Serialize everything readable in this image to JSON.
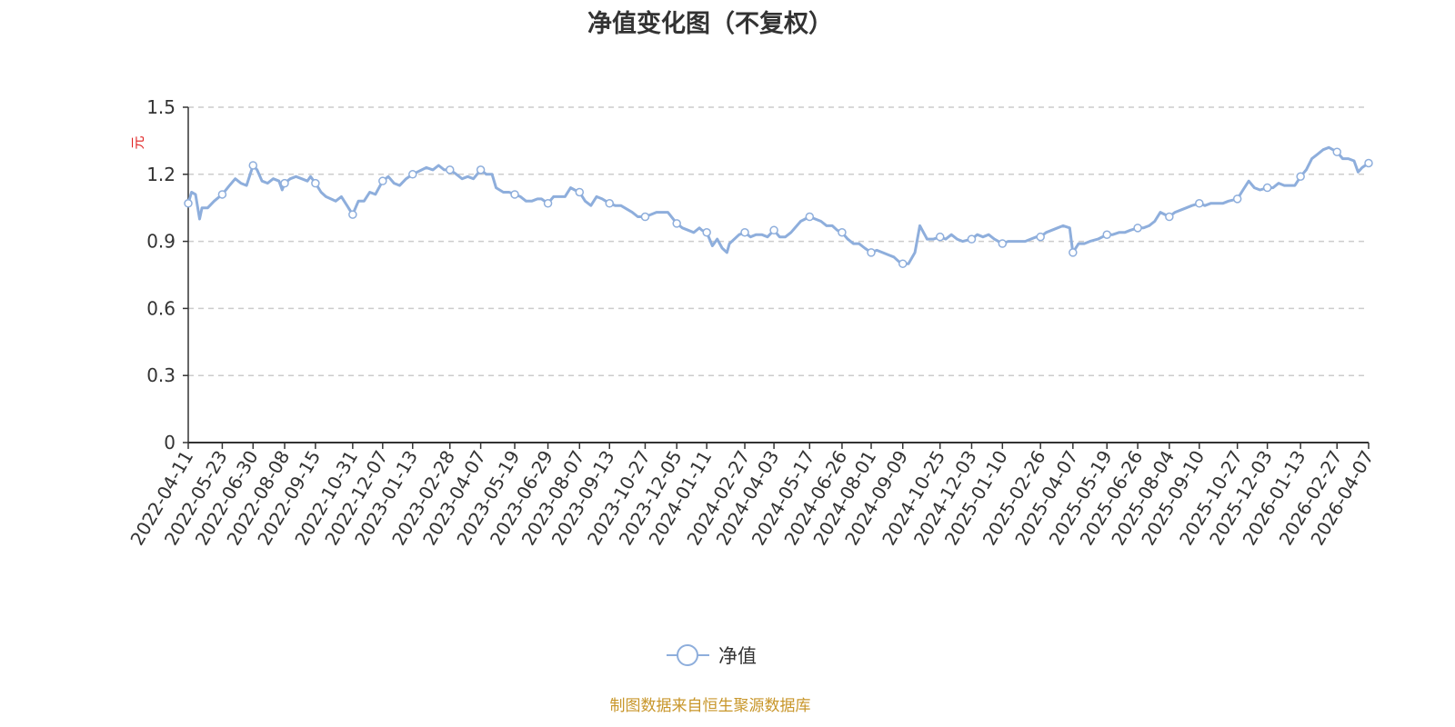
{
  "chart_data": {
    "type": "line",
    "title": "净值变化图（不复权）",
    "ylabel": "元",
    "ylabel_color": "#e02020",
    "ylim": [
      0,
      1.5
    ],
    "yticks": [
      "0",
      "0.3",
      "0.6",
      "0.9",
      "1.2",
      "1.5"
    ],
    "grid": true,
    "legend_position": "bottom-center",
    "x_tick_labels": [
      "2022-04-11",
      "2022-05-23",
      "2022-06-30",
      "2022-08-08",
      "2022-09-15",
      "2022-10-31",
      "2022-12-07",
      "2023-01-13",
      "2023-02-28",
      "2023-04-07",
      "2023-05-19",
      "2023-06-29",
      "2023-08-07",
      "2023-09-13",
      "2023-10-27",
      "2023-12-05",
      "2024-01-11",
      "2024-02-27",
      "2024-04-03",
      "2024-05-17",
      "2024-06-26",
      "2024-08-01",
      "2024-09-09",
      "2024-10-25",
      "2024-12-03",
      "2025-01-10",
      "2025-02-26",
      "2025-04-07",
      "2025-05-19",
      "2025-06-26",
      "2025-08-04",
      "2025-09-10",
      "2025-10-27",
      "2025-12-03",
      "2026-01-13",
      "2026-02-27",
      "2026-04-07"
    ],
    "series": [
      {
        "name": "净值",
        "color": "#8eaedc",
        "points": [
          [
            "2022-04-11",
            1.07
          ],
          [
            "2022-04-15",
            1.12
          ],
          [
            "2022-04-20",
            1.11
          ],
          [
            "2022-04-25",
            1.0
          ],
          [
            "2022-04-28",
            1.05
          ],
          [
            "2022-05-05",
            1.05
          ],
          [
            "2022-05-13",
            1.08
          ],
          [
            "2022-05-23",
            1.11
          ],
          [
            "2022-06-01",
            1.15
          ],
          [
            "2022-06-08",
            1.18
          ],
          [
            "2022-06-15",
            1.16
          ],
          [
            "2022-06-22",
            1.15
          ],
          [
            "2022-06-30",
            1.24
          ],
          [
            "2022-07-05",
            1.22
          ],
          [
            "2022-07-11",
            1.17
          ],
          [
            "2022-07-18",
            1.16
          ],
          [
            "2022-07-25",
            1.18
          ],
          [
            "2022-08-01",
            1.17
          ],
          [
            "2022-08-05",
            1.13
          ],
          [
            "2022-08-08",
            1.16
          ],
          [
            "2022-08-15",
            1.18
          ],
          [
            "2022-08-22",
            1.19
          ],
          [
            "2022-08-29",
            1.18
          ],
          [
            "2022-09-05",
            1.17
          ],
          [
            "2022-09-09",
            1.19
          ],
          [
            "2022-09-15",
            1.16
          ],
          [
            "2022-09-22",
            1.12
          ],
          [
            "2022-09-28",
            1.1
          ],
          [
            "2022-10-10",
            1.08
          ],
          [
            "2022-10-17",
            1.1
          ],
          [
            "2022-10-24",
            1.06
          ],
          [
            "2022-10-31",
            1.02
          ],
          [
            "2022-11-07",
            1.08
          ],
          [
            "2022-11-14",
            1.08
          ],
          [
            "2022-11-21",
            1.12
          ],
          [
            "2022-11-28",
            1.11
          ],
          [
            "2022-12-07",
            1.17
          ],
          [
            "2022-12-14",
            1.19
          ],
          [
            "2022-12-21",
            1.16
          ],
          [
            "2022-12-28",
            1.15
          ],
          [
            "2023-01-05",
            1.18
          ],
          [
            "2023-01-13",
            1.2
          ],
          [
            "2023-01-30",
            1.23
          ],
          [
            "2023-02-07",
            1.22
          ],
          [
            "2023-02-14",
            1.24
          ],
          [
            "2023-02-21",
            1.22
          ],
          [
            "2023-02-28",
            1.22
          ],
          [
            "2023-03-08",
            1.2
          ],
          [
            "2023-03-15",
            1.18
          ],
          [
            "2023-03-22",
            1.19
          ],
          [
            "2023-03-29",
            1.18
          ],
          [
            "2023-04-07",
            1.22
          ],
          [
            "2023-04-14",
            1.2
          ],
          [
            "2023-04-21",
            1.2
          ],
          [
            "2023-04-26",
            1.14
          ],
          [
            "2023-05-05",
            1.12
          ],
          [
            "2023-05-12",
            1.12
          ],
          [
            "2023-05-19",
            1.11
          ],
          [
            "2023-05-26",
            1.1
          ],
          [
            "2023-06-02",
            1.08
          ],
          [
            "2023-06-09",
            1.08
          ],
          [
            "2023-06-16",
            1.09
          ],
          [
            "2023-06-21",
            1.09
          ],
          [
            "2023-06-29",
            1.07
          ],
          [
            "2023-07-06",
            1.1
          ],
          [
            "2023-07-13",
            1.1
          ],
          [
            "2023-07-20",
            1.1
          ],
          [
            "2023-07-27",
            1.14
          ],
          [
            "2023-08-01",
            1.13
          ],
          [
            "2023-08-07",
            1.12
          ],
          [
            "2023-08-14",
            1.08
          ],
          [
            "2023-08-21",
            1.06
          ],
          [
            "2023-08-28",
            1.1
          ],
          [
            "2023-09-04",
            1.09
          ],
          [
            "2023-09-13",
            1.07
          ],
          [
            "2023-09-20",
            1.06
          ],
          [
            "2023-09-27",
            1.06
          ],
          [
            "2023-10-11",
            1.03
          ],
          [
            "2023-10-18",
            1.01
          ],
          [
            "2023-10-27",
            1.01
          ],
          [
            "2023-11-03",
            1.02
          ],
          [
            "2023-11-10",
            1.03
          ],
          [
            "2023-11-17",
            1.03
          ],
          [
            "2023-11-24",
            1.03
          ],
          [
            "2023-12-05",
            0.98
          ],
          [
            "2023-12-12",
            0.96
          ],
          [
            "2023-12-19",
            0.95
          ],
          [
            "2023-12-26",
            0.94
          ],
          [
            "2024-01-02",
            0.96
          ],
          [
            "2024-01-05",
            0.95
          ],
          [
            "2024-01-11",
            0.94
          ],
          [
            "2024-01-18",
            0.88
          ],
          [
            "2024-01-24",
            0.91
          ],
          [
            "2024-01-30",
            0.87
          ],
          [
            "2024-02-05",
            0.85
          ],
          [
            "2024-02-08",
            0.89
          ],
          [
            "2024-02-20",
            0.93
          ],
          [
            "2024-02-27",
            0.94
          ],
          [
            "2024-03-05",
            0.92
          ],
          [
            "2024-03-12",
            0.93
          ],
          [
            "2024-03-19",
            0.93
          ],
          [
            "2024-03-26",
            0.92
          ],
          [
            "2024-04-03",
            0.95
          ],
          [
            "2024-04-10",
            0.92
          ],
          [
            "2024-04-17",
            0.92
          ],
          [
            "2024-04-24",
            0.94
          ],
          [
            "2024-05-06",
            0.99
          ],
          [
            "2024-05-17",
            1.01
          ],
          [
            "2024-05-24",
            1.0
          ],
          [
            "2024-05-31",
            0.99
          ],
          [
            "2024-06-07",
            0.97
          ],
          [
            "2024-06-14",
            0.97
          ],
          [
            "2024-06-20",
            0.95
          ],
          [
            "2024-06-26",
            0.94
          ],
          [
            "2024-07-03",
            0.91
          ],
          [
            "2024-07-10",
            0.89
          ],
          [
            "2024-07-17",
            0.89
          ],
          [
            "2024-07-24",
            0.87
          ],
          [
            "2024-08-01",
            0.85
          ],
          [
            "2024-08-08",
            0.86
          ],
          [
            "2024-08-15",
            0.85
          ],
          [
            "2024-08-22",
            0.84
          ],
          [
            "2024-08-29",
            0.83
          ],
          [
            "2024-09-04",
            0.81
          ],
          [
            "2024-09-09",
            0.8
          ],
          [
            "2024-09-16",
            0.8
          ],
          [
            "2024-09-24",
            0.85
          ],
          [
            "2024-09-30",
            0.97
          ],
          [
            "2024-10-09",
            0.91
          ],
          [
            "2024-10-17",
            0.91
          ],
          [
            "2024-10-25",
            0.92
          ],
          [
            "2024-11-01",
            0.91
          ],
          [
            "2024-11-08",
            0.93
          ],
          [
            "2024-11-15",
            0.91
          ],
          [
            "2024-11-22",
            0.9
          ],
          [
            "2024-12-03",
            0.91
          ],
          [
            "2024-12-10",
            0.93
          ],
          [
            "2024-12-17",
            0.92
          ],
          [
            "2024-12-24",
            0.93
          ],
          [
            "2024-12-31",
            0.91
          ],
          [
            "2025-01-10",
            0.89
          ],
          [
            "2025-01-17",
            0.9
          ],
          [
            "2025-01-24",
            0.9
          ],
          [
            "2025-02-07",
            0.9
          ],
          [
            "2025-02-14",
            0.91
          ],
          [
            "2025-02-21",
            0.92
          ],
          [
            "2025-02-26",
            0.92
          ],
          [
            "2025-03-05",
            0.94
          ],
          [
            "2025-03-12",
            0.95
          ],
          [
            "2025-03-19",
            0.96
          ],
          [
            "2025-03-26",
            0.97
          ],
          [
            "2025-04-03",
            0.96
          ],
          [
            "2025-04-07",
            0.85
          ],
          [
            "2025-04-14",
            0.89
          ],
          [
            "2025-04-21",
            0.89
          ],
          [
            "2025-04-28",
            0.9
          ],
          [
            "2025-05-08",
            0.91
          ],
          [
            "2025-05-19",
            0.93
          ],
          [
            "2025-05-26",
            0.93
          ],
          [
            "2025-06-03",
            0.94
          ],
          [
            "2025-06-10",
            0.94
          ],
          [
            "2025-06-17",
            0.95
          ],
          [
            "2025-06-26",
            0.96
          ],
          [
            "2025-07-03",
            0.96
          ],
          [
            "2025-07-10",
            0.97
          ],
          [
            "2025-07-17",
            0.99
          ],
          [
            "2025-07-24",
            1.03
          ],
          [
            "2025-08-04",
            1.01
          ],
          [
            "2025-08-11",
            1.03
          ],
          [
            "2025-08-18",
            1.04
          ],
          [
            "2025-08-25",
            1.05
          ],
          [
            "2025-09-01",
            1.06
          ],
          [
            "2025-09-10",
            1.07
          ],
          [
            "2025-09-17",
            1.06
          ],
          [
            "2025-09-24",
            1.07
          ],
          [
            "2025-10-09",
            1.07
          ],
          [
            "2025-10-16",
            1.08
          ],
          [
            "2025-10-27",
            1.09
          ],
          [
            "2025-11-03",
            1.13
          ],
          [
            "2025-11-10",
            1.17
          ],
          [
            "2025-11-17",
            1.14
          ],
          [
            "2025-11-24",
            1.13
          ],
          [
            "2025-12-03",
            1.14
          ],
          [
            "2025-12-10",
            1.14
          ],
          [
            "2025-12-17",
            1.16
          ],
          [
            "2025-12-24",
            1.15
          ],
          [
            "2025-12-31",
            1.15
          ],
          [
            "2026-01-06",
            1.15
          ],
          [
            "2026-01-13",
            1.19
          ],
          [
            "2026-01-20",
            1.22
          ],
          [
            "2026-01-27",
            1.27
          ],
          [
            "2026-02-03",
            1.29
          ],
          [
            "2026-02-10",
            1.31
          ],
          [
            "2026-02-17",
            1.32
          ],
          [
            "2026-02-27",
            1.3
          ],
          [
            "2026-03-06",
            1.27
          ],
          [
            "2026-03-13",
            1.27
          ],
          [
            "2026-03-20",
            1.26
          ],
          [
            "2026-03-25",
            1.21
          ],
          [
            "2026-03-30",
            1.23
          ],
          [
            "2026-04-07",
            1.25
          ]
        ],
        "marker_dates": [
          "2022-04-11",
          "2022-05-23",
          "2022-06-30",
          "2022-08-08",
          "2022-09-15",
          "2022-10-31",
          "2022-12-07",
          "2023-01-13",
          "2023-02-28",
          "2023-04-07",
          "2023-05-19",
          "2023-06-29",
          "2023-08-07",
          "2023-09-13",
          "2023-10-27",
          "2023-12-05",
          "2024-01-11",
          "2024-02-27",
          "2024-04-03",
          "2024-05-17",
          "2024-06-26",
          "2024-08-01",
          "2024-09-09",
          "2024-10-25",
          "2024-12-03",
          "2025-01-10",
          "2025-02-26",
          "2025-04-07",
          "2025-05-19",
          "2025-06-26",
          "2025-08-04",
          "2025-09-10",
          "2025-10-27",
          "2025-12-03",
          "2026-01-13",
          "2026-02-27",
          "2026-04-07"
        ]
      }
    ]
  },
  "footer": {
    "source": "制图数据来自恒生聚源数据库"
  }
}
